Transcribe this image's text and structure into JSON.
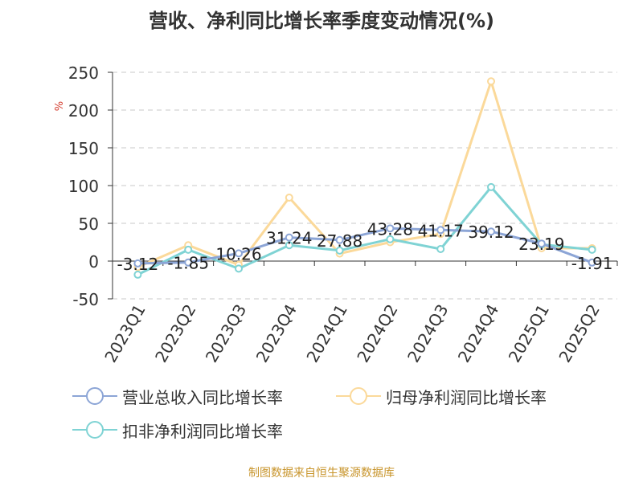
{
  "chart_data": {
    "type": "line",
    "title": "营收、净利同比增长率季度变动情况(%)",
    "ylabel": "%",
    "xlabel": "",
    "categories": [
      "2023Q1",
      "2023Q2",
      "2023Q3",
      "2023Q4",
      "2024Q1",
      "2024Q2",
      "2024Q3",
      "2024Q4",
      "2025Q1",
      "2025Q2"
    ],
    "ylim": [
      -50,
      250
    ],
    "yticks": [
      "250",
      "200",
      "150",
      "100",
      "50",
      "0",
      "-50"
    ],
    "grid": true,
    "legend_position": "bottom",
    "series": [
      {
        "name": "营业总收入同比增长率",
        "values": [
          -3.12,
          -1.85,
          10.26,
          31.24,
          27.88,
          43.28,
          41.17,
          39.12,
          23.19,
          -1.91
        ],
        "labels": [
          "-3.12",
          "-1.85",
          "10.26",
          "31.24",
          "27.88",
          "43.28",
          "41.17",
          "39.12",
          "23.19",
          "-1.91"
        ],
        "color": "#8ca5d6"
      },
      {
        "name": "归母净利润同比增长率",
        "values": [
          -8,
          21,
          -5,
          84,
          10,
          25,
          36,
          238,
          17,
          17
        ],
        "color": "#fbd99a"
      },
      {
        "name": "扣非净利润同比增长率",
        "values": [
          -18,
          15,
          -10,
          21,
          14,
          29,
          16,
          98,
          22,
          15
        ],
        "color": "#7fd3d4"
      }
    ]
  },
  "source": "制图数据来自恒生聚源数据库"
}
